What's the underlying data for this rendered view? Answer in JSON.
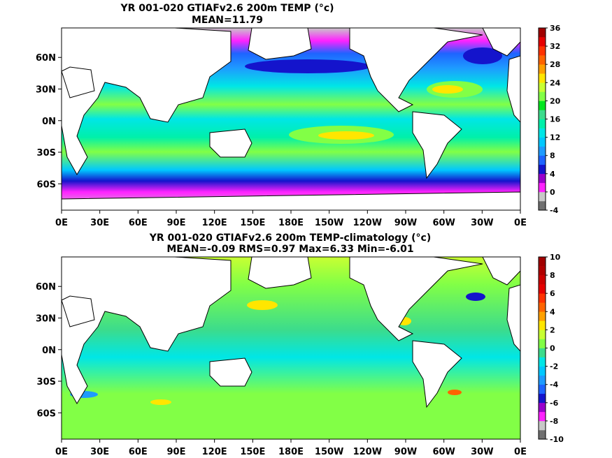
{
  "chart_data": [
    {
      "type": "heatmap",
      "title": "YR 001-020 GTIAFv2.6 200m TEMP (°c)",
      "subtitle": "MEAN=11.79",
      "x_tick_labels": [
        "0E",
        "30E",
        "60E",
        "90E",
        "120E",
        "150E",
        "180E",
        "150W",
        "120W",
        "90W",
        "60W",
        "30W",
        "0E"
      ],
      "y_tick_labels": [
        "60N",
        "30N",
        "0N",
        "30S",
        "60S"
      ],
      "y_tick_values": [
        60,
        30,
        0,
        -30,
        -60
      ],
      "ylim": [
        -85,
        88
      ],
      "colorbar": {
        "tick_labels": [
          "36",
          "32",
          "28",
          "24",
          "20",
          "16",
          "12",
          "8",
          "4",
          "0",
          "-4"
        ],
        "range": [
          -4,
          36
        ],
        "step": 2,
        "colors": [
          "#707070",
          "#c8c8c8",
          "#ff22ff",
          "#9900cc",
          "#1414cc",
          "#1e64ff",
          "#1e9bff",
          "#00c8ff",
          "#00e6e6",
          "#00f0aa",
          "#3cdc8c",
          "#00e61e",
          "#82ff46",
          "#c8ff32",
          "#ffe600",
          "#ffa000",
          "#ff6400",
          "#ff3200",
          "#e60000",
          "#a00000"
        ]
      }
    },
    {
      "type": "heatmap",
      "title": "YR 001-020 GTIAFv2.6 200m TEMP-climatology (°c)",
      "subtitle": "MEAN=-0.09   RMS=0.97   Max=6.33   Min=-6.01",
      "x_tick_labels": [
        "0E",
        "30E",
        "60E",
        "90E",
        "120E",
        "150E",
        "180E",
        "150W",
        "120W",
        "90W",
        "60W",
        "30W",
        "0E"
      ],
      "y_tick_labels": [
        "60N",
        "30N",
        "0N",
        "30S",
        "60S"
      ],
      "y_tick_values": [
        60,
        30,
        0,
        -30,
        -60
      ],
      "ylim": [
        -85,
        88
      ],
      "colorbar": {
        "tick_labels": [
          "10",
          "8",
          "6",
          "4",
          "2",
          "0",
          "-2",
          "-4",
          "-6",
          "-8",
          "-10"
        ],
        "range": [
          -10,
          10
        ],
        "step": 1,
        "colors": [
          "#707070",
          "#c8c8c8",
          "#ff22ff",
          "#9900cc",
          "#1414cc",
          "#1e64ff",
          "#1e9bff",
          "#00c8ff",
          "#00e6e6",
          "#3cdc8c",
          "#82ff46",
          "#c8ff32",
          "#ffe600",
          "#ffa000",
          "#ff6400",
          "#ff3200",
          "#e60000",
          "#cc0000",
          "#b00000",
          "#a00000"
        ]
      }
    }
  ]
}
